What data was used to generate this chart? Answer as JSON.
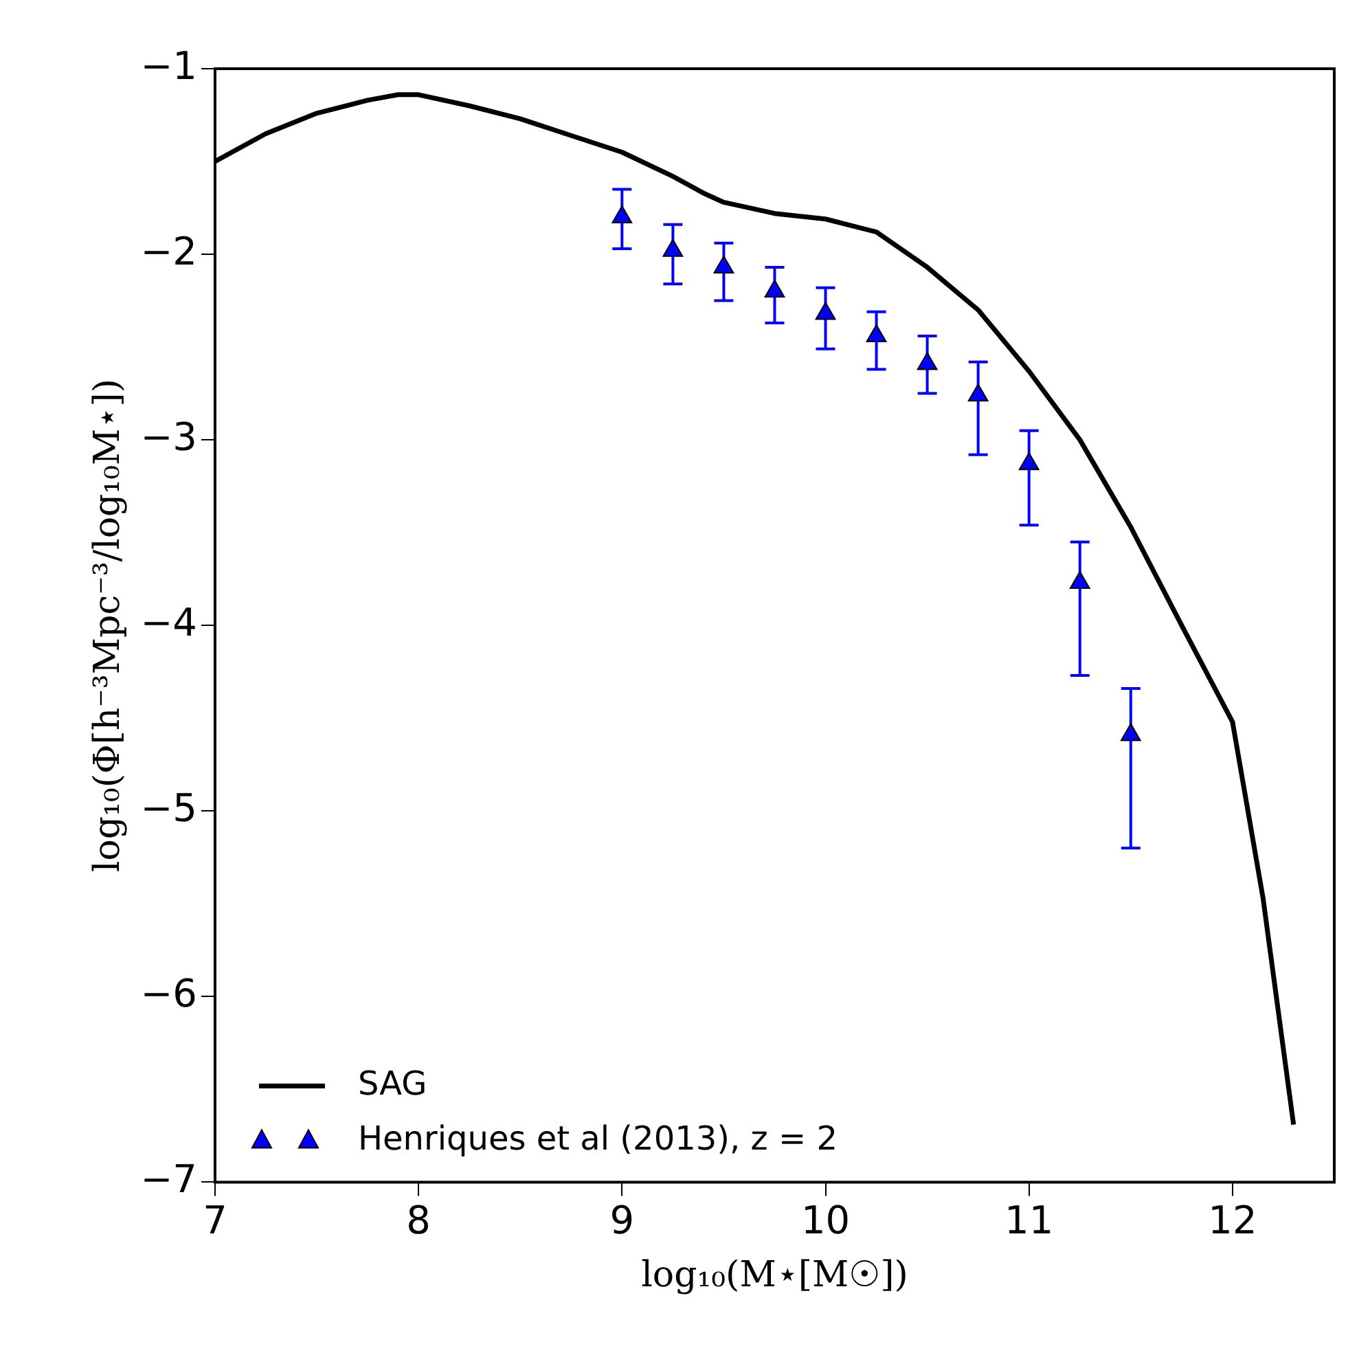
{
  "chart_data": {
    "type": "line",
    "xlabel": "log₁₀(M⋆[M☉])",
    "ylabel": "log₁₀(Φ[h⁻³Mpc⁻³/log₁₀M⋆])",
    "xlim": [
      7,
      12.5
    ],
    "xticks": [
      7,
      8,
      9,
      10,
      11,
      12
    ],
    "ylim": [
      -7,
      -1
    ],
    "yticks": [
      -7,
      -6,
      -5,
      -4,
      -3,
      -2,
      -1
    ],
    "grid": false,
    "legend": "bottom left",
    "series": [
      {
        "name": "SAG",
        "color": "#000000",
        "marker": "none",
        "line_style": "solid",
        "x": [
          7,
          7.25,
          7.5,
          7.75,
          7.9,
          8,
          8.25,
          8.5,
          8.75,
          9,
          9.25,
          9.4,
          9.5,
          9.75,
          10,
          10.25,
          10.5,
          10.75,
          11,
          11.25,
          11.5,
          11.75,
          12,
          12.15,
          12.3
        ],
        "values": [
          -1.5,
          -1.35,
          -1.24,
          -1.17,
          -1.14,
          -1.14,
          -1.2,
          -1.27,
          -1.36,
          -1.45,
          -1.58,
          -1.67,
          -1.72,
          -1.78,
          -1.81,
          -1.88,
          -2.07,
          -2.3,
          -2.63,
          -3.0,
          -3.47,
          -4.0,
          -4.52,
          -5.47,
          -6.69
        ]
      },
      {
        "name": "Henriques et al (2013), z = 2",
        "type": "scatter",
        "color": "#0000ff",
        "marker": "triangle",
        "x": [
          9,
          9.25,
          9.5,
          9.75,
          10,
          10.25,
          10.5,
          10.75,
          11,
          11.25,
          11.5
        ],
        "values": [
          -1.8,
          -1.98,
          -2.07,
          -2.2,
          -2.32,
          -2.44,
          -2.59,
          -2.76,
          -3.13,
          -3.77,
          -4.59
        ],
        "errors": [
          [
            -1.97,
            -1.65
          ],
          [
            -2.16,
            -1.84
          ],
          [
            -2.25,
            -1.94
          ],
          [
            -2.37,
            -2.07
          ],
          [
            -2.51,
            -2.18
          ],
          [
            -2.62,
            -2.31
          ],
          [
            -2.75,
            -2.44
          ],
          [
            -3.08,
            -2.58
          ],
          [
            -3.46,
            -2.95
          ],
          [
            -4.27,
            -3.55
          ],
          [
            -5.2,
            -4.34
          ]
        ]
      }
    ]
  }
}
